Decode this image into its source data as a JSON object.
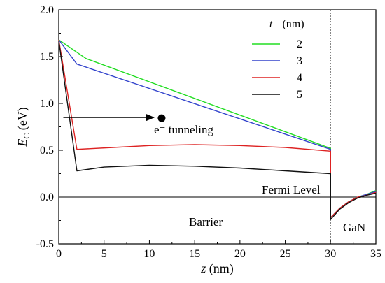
{
  "chart_data": {
    "type": "line",
    "xlabel": "z (nm)",
    "ylabel": "E_C (eV)",
    "xlim": [
      0,
      35
    ],
    "ylim": [
      -0.5,
      2.0
    ],
    "x_ticks": [
      0,
      5,
      10,
      15,
      20,
      25,
      30,
      35
    ],
    "y_ticks": [
      -0.5,
      0.0,
      0.5,
      1.0,
      1.5,
      2.0
    ],
    "y_tick_labels": [
      "-0.5",
      "0.0",
      "0.5",
      "1.0",
      "1.5",
      "2.0"
    ],
    "grid": false,
    "legend": {
      "title_var": "t",
      "title_unit": "(nm)",
      "placement": "top-right"
    },
    "series": [
      {
        "name": "2",
        "color": "#22dd22",
        "points": [
          [
            0,
            1.68
          ],
          [
            3,
            1.48
          ],
          [
            30,
            0.52
          ],
          [
            30,
            -0.22
          ],
          [
            31,
            -0.12
          ],
          [
            32,
            -0.05
          ],
          [
            33,
            0.0
          ],
          [
            34,
            0.03
          ],
          [
            35,
            0.07
          ]
        ]
      },
      {
        "name": "3",
        "color": "#3344cc",
        "points": [
          [
            0,
            1.68
          ],
          [
            2,
            1.42
          ],
          [
            30,
            0.51
          ],
          [
            30,
            -0.22
          ],
          [
            31,
            -0.12
          ],
          [
            32,
            -0.05
          ],
          [
            33,
            0.0
          ],
          [
            34,
            0.03
          ],
          [
            35,
            0.06
          ]
        ]
      },
      {
        "name": "4",
        "color": "#dd2222",
        "points": [
          [
            0,
            1.68
          ],
          [
            2,
            0.51
          ],
          [
            6,
            0.53
          ],
          [
            10,
            0.55
          ],
          [
            15,
            0.56
          ],
          [
            20,
            0.55
          ],
          [
            25,
            0.53
          ],
          [
            30,
            0.49
          ],
          [
            30,
            -0.22
          ],
          [
            31,
            -0.12
          ],
          [
            32,
            -0.05
          ],
          [
            33,
            0.0
          ],
          [
            34,
            0.02
          ],
          [
            35,
            0.05
          ]
        ]
      },
      {
        "name": "5",
        "color": "#111111",
        "points": [
          [
            0,
            1.67
          ],
          [
            2,
            0.28
          ],
          [
            5,
            0.32
          ],
          [
            10,
            0.34
          ],
          [
            15,
            0.33
          ],
          [
            20,
            0.31
          ],
          [
            25,
            0.28
          ],
          [
            30,
            0.25
          ],
          [
            30,
            -0.24
          ],
          [
            31,
            -0.13
          ],
          [
            32,
            -0.06
          ],
          [
            33,
            -0.01
          ],
          [
            34,
            0.02
          ],
          [
            35,
            0.04
          ]
        ]
      }
    ],
    "fermi_level": 0.0,
    "interface_z": 30,
    "annotations": {
      "tunneling": "e⁻ tunneling",
      "fermi": "Fermi Level",
      "barrier": "Barrier",
      "gan": "GaN"
    },
    "arrow": {
      "from_x": 0.5,
      "to_x": 11.2,
      "y": 0.85
    },
    "electron": {
      "x": 11.2,
      "y": 0.85
    }
  }
}
